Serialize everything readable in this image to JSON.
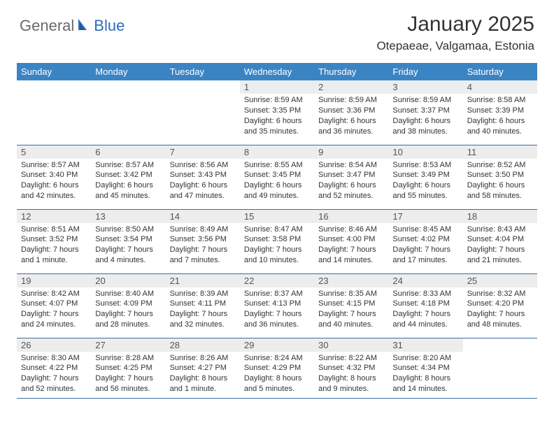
{
  "logo": {
    "text1": "General",
    "text2": "Blue"
  },
  "title": "January 2025",
  "location": "Otepaeae, Valgamaa, Estonia",
  "colors": {
    "header_bg": "#3b84c4",
    "header_text": "#ffffff",
    "daynum_bg": "#ededed",
    "border": "#3b6fa0",
    "logo_gray": "#6a6a6a",
    "logo_blue": "#2d6fb8"
  },
  "dayHeaders": [
    "Sunday",
    "Monday",
    "Tuesday",
    "Wednesday",
    "Thursday",
    "Friday",
    "Saturday"
  ],
  "weeks": [
    [
      {
        "n": "",
        "lines": []
      },
      {
        "n": "",
        "lines": []
      },
      {
        "n": "",
        "lines": []
      },
      {
        "n": "1",
        "lines": [
          "Sunrise: 8:59 AM",
          "Sunset: 3:35 PM",
          "Daylight: 6 hours",
          "and 35 minutes."
        ]
      },
      {
        "n": "2",
        "lines": [
          "Sunrise: 8:59 AM",
          "Sunset: 3:36 PM",
          "Daylight: 6 hours",
          "and 36 minutes."
        ]
      },
      {
        "n": "3",
        "lines": [
          "Sunrise: 8:59 AM",
          "Sunset: 3:37 PM",
          "Daylight: 6 hours",
          "and 38 minutes."
        ]
      },
      {
        "n": "4",
        "lines": [
          "Sunrise: 8:58 AM",
          "Sunset: 3:39 PM",
          "Daylight: 6 hours",
          "and 40 minutes."
        ]
      }
    ],
    [
      {
        "n": "5",
        "lines": [
          "Sunrise: 8:57 AM",
          "Sunset: 3:40 PM",
          "Daylight: 6 hours",
          "and 42 minutes."
        ]
      },
      {
        "n": "6",
        "lines": [
          "Sunrise: 8:57 AM",
          "Sunset: 3:42 PM",
          "Daylight: 6 hours",
          "and 45 minutes."
        ]
      },
      {
        "n": "7",
        "lines": [
          "Sunrise: 8:56 AM",
          "Sunset: 3:43 PM",
          "Daylight: 6 hours",
          "and 47 minutes."
        ]
      },
      {
        "n": "8",
        "lines": [
          "Sunrise: 8:55 AM",
          "Sunset: 3:45 PM",
          "Daylight: 6 hours",
          "and 49 minutes."
        ]
      },
      {
        "n": "9",
        "lines": [
          "Sunrise: 8:54 AM",
          "Sunset: 3:47 PM",
          "Daylight: 6 hours",
          "and 52 minutes."
        ]
      },
      {
        "n": "10",
        "lines": [
          "Sunrise: 8:53 AM",
          "Sunset: 3:49 PM",
          "Daylight: 6 hours",
          "and 55 minutes."
        ]
      },
      {
        "n": "11",
        "lines": [
          "Sunrise: 8:52 AM",
          "Sunset: 3:50 PM",
          "Daylight: 6 hours",
          "and 58 minutes."
        ]
      }
    ],
    [
      {
        "n": "12",
        "lines": [
          "Sunrise: 8:51 AM",
          "Sunset: 3:52 PM",
          "Daylight: 7 hours",
          "and 1 minute."
        ]
      },
      {
        "n": "13",
        "lines": [
          "Sunrise: 8:50 AM",
          "Sunset: 3:54 PM",
          "Daylight: 7 hours",
          "and 4 minutes."
        ]
      },
      {
        "n": "14",
        "lines": [
          "Sunrise: 8:49 AM",
          "Sunset: 3:56 PM",
          "Daylight: 7 hours",
          "and 7 minutes."
        ]
      },
      {
        "n": "15",
        "lines": [
          "Sunrise: 8:47 AM",
          "Sunset: 3:58 PM",
          "Daylight: 7 hours",
          "and 10 minutes."
        ]
      },
      {
        "n": "16",
        "lines": [
          "Sunrise: 8:46 AM",
          "Sunset: 4:00 PM",
          "Daylight: 7 hours",
          "and 14 minutes."
        ]
      },
      {
        "n": "17",
        "lines": [
          "Sunrise: 8:45 AM",
          "Sunset: 4:02 PM",
          "Daylight: 7 hours",
          "and 17 minutes."
        ]
      },
      {
        "n": "18",
        "lines": [
          "Sunrise: 8:43 AM",
          "Sunset: 4:04 PM",
          "Daylight: 7 hours",
          "and 21 minutes."
        ]
      }
    ],
    [
      {
        "n": "19",
        "lines": [
          "Sunrise: 8:42 AM",
          "Sunset: 4:07 PM",
          "Daylight: 7 hours",
          "and 24 minutes."
        ]
      },
      {
        "n": "20",
        "lines": [
          "Sunrise: 8:40 AM",
          "Sunset: 4:09 PM",
          "Daylight: 7 hours",
          "and 28 minutes."
        ]
      },
      {
        "n": "21",
        "lines": [
          "Sunrise: 8:39 AM",
          "Sunset: 4:11 PM",
          "Daylight: 7 hours",
          "and 32 minutes."
        ]
      },
      {
        "n": "22",
        "lines": [
          "Sunrise: 8:37 AM",
          "Sunset: 4:13 PM",
          "Daylight: 7 hours",
          "and 36 minutes."
        ]
      },
      {
        "n": "23",
        "lines": [
          "Sunrise: 8:35 AM",
          "Sunset: 4:15 PM",
          "Daylight: 7 hours",
          "and 40 minutes."
        ]
      },
      {
        "n": "24",
        "lines": [
          "Sunrise: 8:33 AM",
          "Sunset: 4:18 PM",
          "Daylight: 7 hours",
          "and 44 minutes."
        ]
      },
      {
        "n": "25",
        "lines": [
          "Sunrise: 8:32 AM",
          "Sunset: 4:20 PM",
          "Daylight: 7 hours",
          "and 48 minutes."
        ]
      }
    ],
    [
      {
        "n": "26",
        "lines": [
          "Sunrise: 8:30 AM",
          "Sunset: 4:22 PM",
          "Daylight: 7 hours",
          "and 52 minutes."
        ]
      },
      {
        "n": "27",
        "lines": [
          "Sunrise: 8:28 AM",
          "Sunset: 4:25 PM",
          "Daylight: 7 hours",
          "and 56 minutes."
        ]
      },
      {
        "n": "28",
        "lines": [
          "Sunrise: 8:26 AM",
          "Sunset: 4:27 PM",
          "Daylight: 8 hours",
          "and 1 minute."
        ]
      },
      {
        "n": "29",
        "lines": [
          "Sunrise: 8:24 AM",
          "Sunset: 4:29 PM",
          "Daylight: 8 hours",
          "and 5 minutes."
        ]
      },
      {
        "n": "30",
        "lines": [
          "Sunrise: 8:22 AM",
          "Sunset: 4:32 PM",
          "Daylight: 8 hours",
          "and 9 minutes."
        ]
      },
      {
        "n": "31",
        "lines": [
          "Sunrise: 8:20 AM",
          "Sunset: 4:34 PM",
          "Daylight: 8 hours",
          "and 14 minutes."
        ]
      },
      {
        "n": "",
        "lines": []
      }
    ]
  ]
}
